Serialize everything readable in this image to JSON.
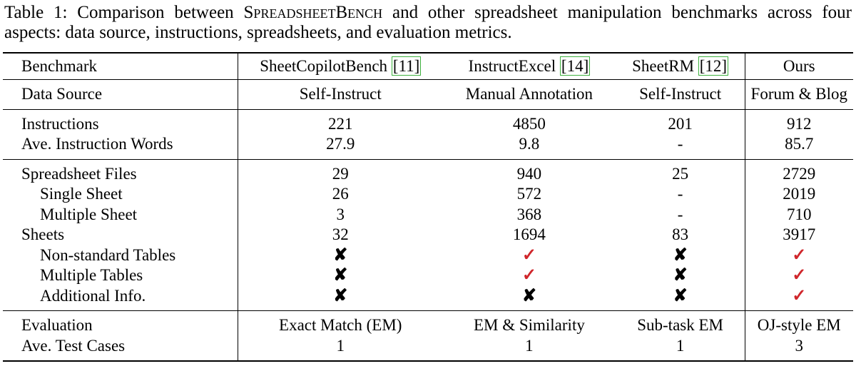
{
  "caption": {
    "prefix": "Table 1: Comparison between ",
    "name": "SpreadsheetBench",
    "suffix": " and other spreadsheet manipulation benchmarks across four aspects: data source, instructions, spreadsheets, and evaluation metrics."
  },
  "table": {
    "header": [
      {
        "text": "Benchmark"
      },
      {
        "text": "SheetCopilotBench",
        "cite": "[11]"
      },
      {
        "text": "InstructExcel",
        "cite": "[14]"
      },
      {
        "text": "SheetRM",
        "cite": "[12]"
      },
      {
        "text": "Ours"
      }
    ],
    "groups": [
      [
        [
          "Data Source",
          "Self-Instruct",
          "Manual Annotation",
          "Self-Instruct",
          "Forum & Blog"
        ]
      ],
      [
        [
          "Instructions",
          "221",
          "4850",
          "201",
          "912"
        ],
        [
          "Ave. Instruction Words",
          "27.9",
          "9.8",
          "-",
          "85.7"
        ]
      ],
      [
        [
          "Spreadsheet Files",
          "29",
          "940",
          "25",
          "2729"
        ],
        [
          "Single Sheet",
          "26",
          "572",
          "-",
          "2019"
        ],
        [
          "Multiple Sheet",
          "3",
          "368",
          "-",
          "710"
        ],
        [
          "Sheets",
          "32",
          "1694",
          "83",
          "3917"
        ],
        [
          "Non-standard Tables",
          {
            "mark": "✘",
            "color": "#000000"
          },
          {
            "mark": "✓",
            "color": "#d0262b"
          },
          {
            "mark": "✘",
            "color": "#000000"
          },
          {
            "mark": "✓",
            "color": "#d0262b"
          }
        ],
        [
          "Multiple Tables",
          {
            "mark": "✘",
            "color": "#000000"
          },
          {
            "mark": "✓",
            "color": "#d0262b"
          },
          {
            "mark": "✘",
            "color": "#000000"
          },
          {
            "mark": "✓",
            "color": "#d0262b"
          }
        ],
        [
          "Additional Info.",
          {
            "mark": "✘",
            "color": "#000000"
          },
          {
            "mark": "✘",
            "color": "#000000"
          },
          {
            "mark": "✘",
            "color": "#000000"
          },
          {
            "mark": "✓",
            "color": "#d0262b"
          }
        ]
      ],
      [
        [
          "Evaluation",
          "Exact Match (EM)",
          "EM & Similarity",
          "Sub-task EM",
          "OJ-style EM"
        ],
        [
          "Ave. Test Cases",
          "1",
          "1",
          "1",
          "3"
        ]
      ]
    ]
  }
}
